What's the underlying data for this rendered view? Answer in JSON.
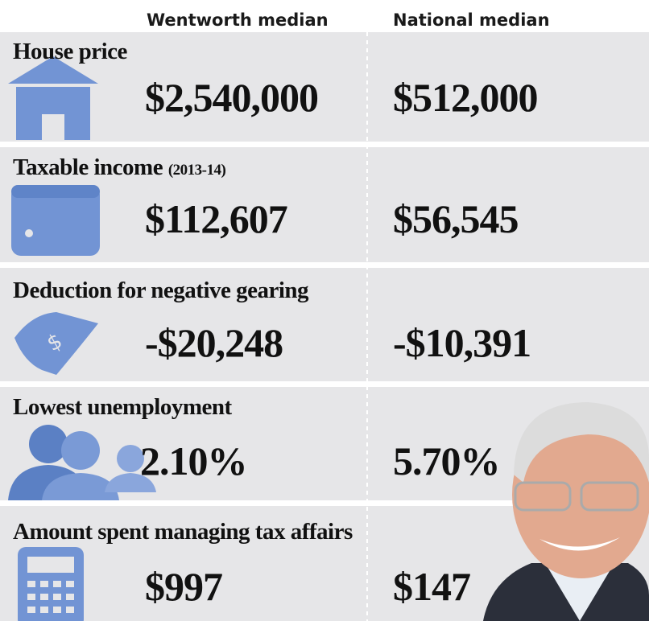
{
  "header": {
    "columns": [
      "Wentworth median",
      "National median"
    ]
  },
  "rows": [
    {
      "label": "House price",
      "wentworth": "$2,540,000",
      "national": "$512,000"
    },
    {
      "label": "Taxable income",
      "note": "(2013-14)",
      "wentworth": "$112,607",
      "national": "$56,545"
    },
    {
      "label": "Deduction for negative gearing",
      "wentworth": "-$20,248",
      "national": "-$10,391"
    },
    {
      "label": "Lowest unemployment",
      "wentworth": "2.10%",
      "national": "5.70%"
    },
    {
      "label": "Amount spent managing tax affairs",
      "wentworth": "$997",
      "national": "$147"
    }
  ]
}
